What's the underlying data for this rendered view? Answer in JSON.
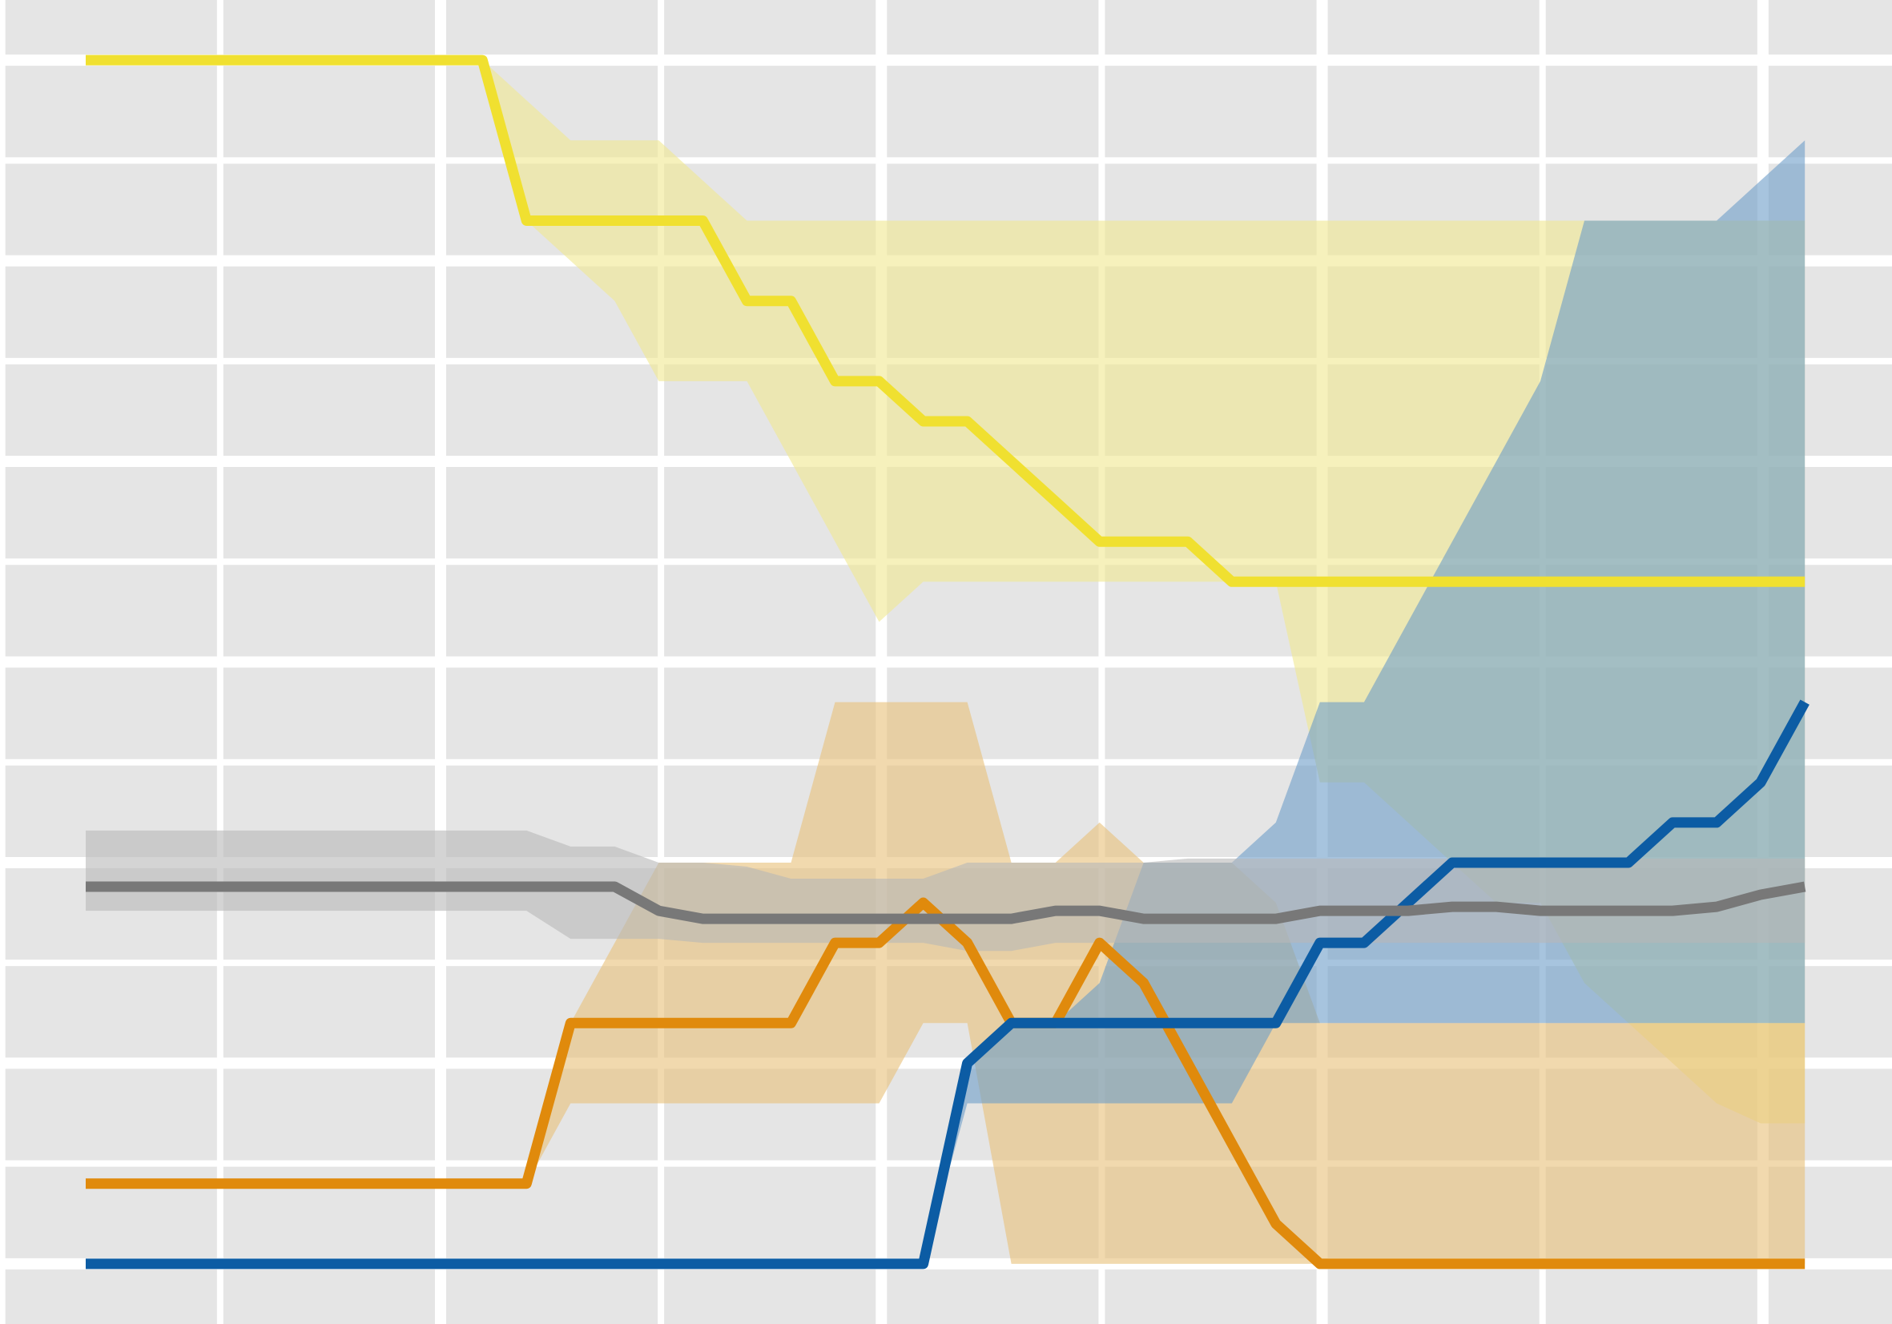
{
  "chart_data": {
    "type": "line",
    "title": "",
    "xlabel": "",
    "ylabel": "",
    "xlim": [
      0,
      43
    ],
    "ylim": [
      -0.0035,
      0.0295
    ],
    "grid": true,
    "legend": "none",
    "x": [
      0,
      1,
      2,
      3,
      4,
      5,
      6,
      7,
      8,
      9,
      10,
      11,
      12,
      13,
      14,
      15,
      16,
      17,
      18,
      19,
      20,
      21,
      22,
      23,
      24,
      25,
      26,
      27,
      28,
      29,
      30,
      31,
      32,
      33,
      34,
      35,
      36,
      37,
      38,
      39
    ],
    "colors": {
      "background": "#e5e5e5",
      "grid": "#ffffff"
    },
    "series": [
      {
        "color": "#f0e030",
        "band_color": "#f0e890",
        "values": [
          0.028,
          0.028,
          0.028,
          0.028,
          0.028,
          0.028,
          0.028,
          0.028,
          0.028,
          0.028,
          0.024,
          0.024,
          0.024,
          0.024,
          0.024,
          0.022,
          0.022,
          0.02,
          0.02,
          0.019,
          0.019,
          0.018,
          0.017,
          0.016,
          0.016,
          0.016,
          0.015,
          0.015,
          0.015,
          0.015,
          0.015,
          0.015,
          0.015,
          0.015,
          0.015,
          0.015,
          0.015,
          0.015,
          0.015,
          0.015
        ],
        "upper": [
          0.028,
          0.028,
          0.028,
          0.028,
          0.028,
          0.028,
          0.028,
          0.028,
          0.028,
          0.028,
          0.027,
          0.026,
          0.026,
          0.026,
          0.025,
          0.024,
          0.024,
          0.024,
          0.024,
          0.024,
          0.024,
          0.024,
          0.024,
          0.024,
          0.024,
          0.024,
          0.024,
          0.024,
          0.024,
          0.024,
          0.024,
          0.024,
          0.024,
          0.024,
          0.024,
          0.024,
          0.024,
          0.024,
          0.024,
          0.024
        ],
        "lower": [
          0.028,
          0.028,
          0.028,
          0.028,
          0.028,
          0.028,
          0.028,
          0.028,
          0.028,
          0.028,
          0.024,
          0.023,
          0.022,
          0.02,
          0.02,
          0.02,
          0.018,
          0.016,
          0.014,
          0.015,
          0.015,
          0.015,
          0.015,
          0.015,
          0.015,
          0.015,
          0.015,
          0.015,
          0.01,
          0.01,
          0.009,
          0.008,
          0.007,
          0.007,
          0.005,
          0.004,
          0.003,
          0.002,
          0.0015,
          0.0015
        ]
      },
      {
        "color": "#e08a0c",
        "band_color": "#e8c078",
        "values": [
          0,
          0,
          0,
          0,
          0,
          0,
          0,
          0,
          0,
          0,
          0,
          0.004,
          0.004,
          0.004,
          0.004,
          0.004,
          0.004,
          0.006,
          0.006,
          0.007,
          0.006,
          0.004,
          0.004,
          0.006,
          0.005,
          0.003,
          0.001,
          -0.001,
          -0.002,
          -0.002,
          -0.002,
          -0.002,
          -0.002,
          -0.002,
          -0.002,
          -0.002,
          -0.002,
          -0.002,
          -0.002,
          -0.002
        ],
        "upper": [
          0,
          0,
          0,
          0,
          0,
          0,
          0,
          0,
          0,
          0,
          0,
          0.004,
          0.006,
          0.008,
          0.008,
          0.008,
          0.008,
          0.012,
          0.012,
          0.012,
          0.012,
          0.008,
          0.008,
          0.009,
          0.008,
          0.008,
          0.008,
          0.007,
          0.004,
          0.004,
          0.004,
          0.004,
          0.004,
          0.004,
          0.004,
          0.004,
          0.004,
          0.004,
          0.004,
          0.004
        ],
        "lower": [
          0,
          0,
          0,
          0,
          0,
          0,
          0,
          0,
          0,
          0,
          0,
          0.002,
          0.002,
          0.002,
          0.002,
          0.002,
          0.002,
          0.002,
          0.002,
          0.004,
          0.004,
          -0.002,
          -0.002,
          -0.002,
          -0.002,
          -0.002,
          -0.002,
          -0.002,
          -0.002,
          -0.002,
          -0.002,
          -0.002,
          -0.002,
          -0.002,
          -0.002,
          -0.002,
          -0.002,
          -0.002,
          -0.002,
          -0.002
        ]
      },
      {
        "color": "#0c5ca4",
        "band_color": "#6c9cc8",
        "values": [
          -0.002,
          -0.002,
          -0.002,
          -0.002,
          -0.002,
          -0.002,
          -0.002,
          -0.002,
          -0.002,
          -0.002,
          -0.002,
          -0.002,
          -0.002,
          -0.002,
          -0.002,
          -0.002,
          -0.002,
          -0.002,
          -0.002,
          -0.002,
          0.003,
          0.004,
          0.004,
          0.004,
          0.004,
          0.004,
          0.004,
          0.004,
          0.006,
          0.006,
          0.007,
          0.008,
          0.008,
          0.008,
          0.008,
          0.008,
          0.009,
          0.009,
          0.01,
          0.012
        ],
        "upper": [
          -0.002,
          -0.002,
          -0.002,
          -0.002,
          -0.002,
          -0.002,
          -0.002,
          -0.002,
          -0.002,
          -0.002,
          -0.002,
          -0.002,
          -0.002,
          -0.002,
          -0.002,
          -0.002,
          -0.002,
          -0.002,
          -0.002,
          -0.002,
          0.003,
          0.004,
          0.004,
          0.005,
          0.008,
          0.008,
          0.008,
          0.009,
          0.012,
          0.012,
          0.014,
          0.016,
          0.018,
          0.02,
          0.024,
          0.024,
          0.024,
          0.024,
          0.025,
          0.026
        ],
        "lower": [
          -0.002,
          -0.002,
          -0.002,
          -0.002,
          -0.002,
          -0.002,
          -0.002,
          -0.002,
          -0.002,
          -0.002,
          -0.002,
          -0.002,
          -0.002,
          -0.002,
          -0.002,
          -0.002,
          -0.002,
          -0.002,
          -0.002,
          -0.002,
          0.002,
          0.002,
          0.002,
          0.002,
          0.002,
          0.002,
          0.002,
          0.004,
          0.004,
          0.004,
          0.004,
          0.004,
          0.004,
          0.004,
          0.004,
          0.004,
          0.004,
          0.004,
          0.004,
          0.004
        ]
      },
      {
        "color": "#787878",
        "band_color": "#b8b8b8",
        "values": [
          0.0074,
          0.0074,
          0.0074,
          0.0074,
          0.0074,
          0.0074,
          0.0074,
          0.0074,
          0.0074,
          0.0074,
          0.0074,
          0.0074,
          0.0074,
          0.0068,
          0.0066,
          0.0066,
          0.0066,
          0.0066,
          0.0066,
          0.0066,
          0.0066,
          0.0066,
          0.0068,
          0.0068,
          0.0066,
          0.0066,
          0.0066,
          0.0066,
          0.0068,
          0.0068,
          0.0068,
          0.0069,
          0.0069,
          0.0068,
          0.0068,
          0.0068,
          0.0068,
          0.0069,
          0.0072,
          0.0074
        ],
        "upper": [
          0.0088,
          0.0088,
          0.0088,
          0.0088,
          0.0088,
          0.0088,
          0.0088,
          0.0088,
          0.0088,
          0.0088,
          0.0088,
          0.0084,
          0.0084,
          0.008,
          0.008,
          0.0079,
          0.0076,
          0.0076,
          0.0076,
          0.0076,
          0.008,
          0.008,
          0.008,
          0.008,
          0.008,
          0.0081,
          0.0081,
          0.0081,
          0.0081,
          0.0081,
          0.0081,
          0.0081,
          0.0081,
          0.0081,
          0.0081,
          0.0081,
          0.0081,
          0.0081,
          0.0081,
          0.0081
        ],
        "lower": [
          0.0068,
          0.0068,
          0.0068,
          0.0068,
          0.0068,
          0.0068,
          0.0068,
          0.0068,
          0.0068,
          0.0068,
          0.0068,
          0.0061,
          0.0061,
          0.0061,
          0.006,
          0.006,
          0.006,
          0.006,
          0.006,
          0.006,
          0.0058,
          0.0058,
          0.006,
          0.006,
          0.006,
          0.006,
          0.006,
          0.006,
          0.006,
          0.006,
          0.006,
          0.006,
          0.006,
          0.006,
          0.006,
          0.006,
          0.006,
          0.006,
          0.006,
          0.006
        ]
      }
    ]
  }
}
